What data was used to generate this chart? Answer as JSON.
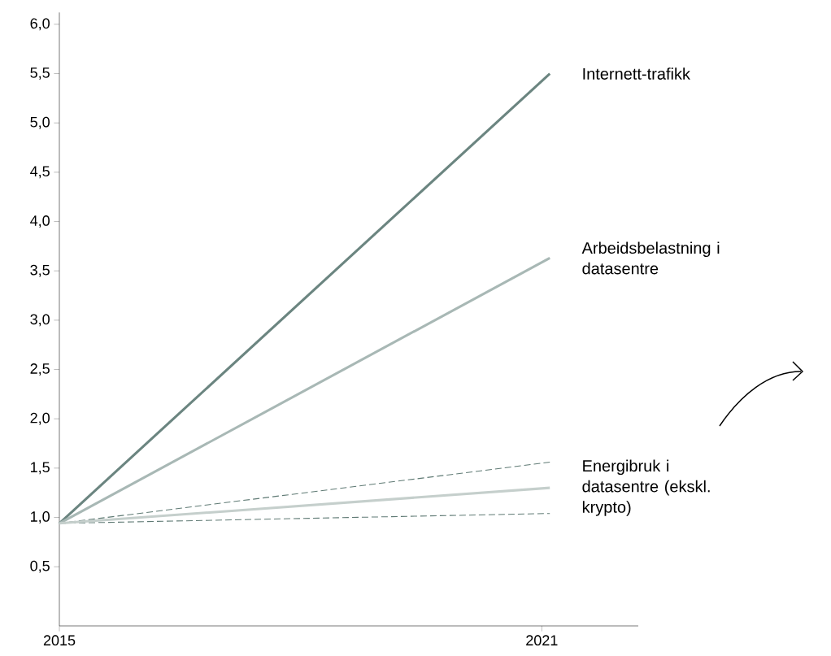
{
  "chart_data": {
    "type": "line",
    "x": [
      2015,
      2021.1
    ],
    "xlim": [
      2015,
      2022.2
    ],
    "xticks": [
      2015,
      2021
    ],
    "ylim": [
      -0.1,
      6.12
    ],
    "yticks": [
      {
        "value": 0.5,
        "label": "0,5"
      },
      {
        "value": 1.0,
        "label": "1,0"
      },
      {
        "value": 1.5,
        "label": "1,5"
      },
      {
        "value": 2.0,
        "label": "2,0"
      },
      {
        "value": 2.5,
        "label": "2,5"
      },
      {
        "value": 3.0,
        "label": "3,0"
      },
      {
        "value": 3.5,
        "label": "3,5"
      },
      {
        "value": 4.0,
        "label": "4,0"
      },
      {
        "value": 4.5,
        "label": "4,5"
      },
      {
        "value": 5.0,
        "label": "5,0"
      },
      {
        "value": 5.5,
        "label": "5,5"
      },
      {
        "value": 6.0,
        "label": "6,0"
      }
    ],
    "marker": "none",
    "series": [
      {
        "name": "Internett-trafikk",
        "color": "#6b8580",
        "values": [
          0.94,
          5.5
        ]
      },
      {
        "name": "Arbeidsbelastning i datasentre",
        "color": "#a8b8b5",
        "values": [
          0.94,
          3.63
        ]
      },
      {
        "color": "#5f7a74",
        "line_style": "dashed",
        "values": [
          0.94,
          1.56
        ]
      },
      {
        "color": "#5f7a74",
        "line_style": "dashed",
        "values": [
          0.94,
          1.04
        ]
      },
      {
        "name": "Energibruk i datasentre (ekskl. krypto)",
        "color": "#c5cfcc",
        "values": [
          0.94,
          1.3
        ]
      }
    ]
  }
}
